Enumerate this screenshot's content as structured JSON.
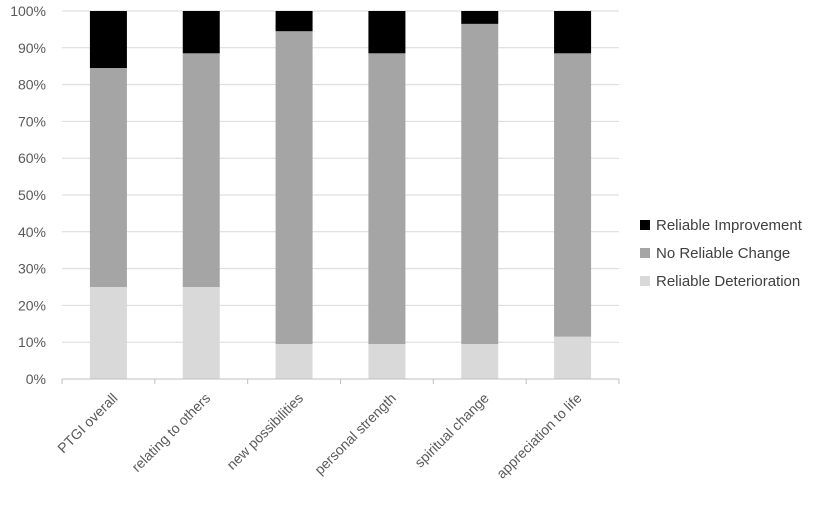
{
  "chart_data": {
    "type": "bar",
    "stacked": true,
    "percent_stacked": true,
    "title": "",
    "xlabel": "",
    "ylabel": "",
    "ylim": [
      0,
      100
    ],
    "y_ticks": [
      "0%",
      "10%",
      "20%",
      "30%",
      "40%",
      "50%",
      "60%",
      "70%",
      "80%",
      "90%",
      "100%"
    ],
    "grid": true,
    "legend_position": "right",
    "categories": [
      "PTGI overall",
      "relating to others",
      "new possibilities",
      "personal strength",
      "spiritual change",
      "appreciation to life"
    ],
    "series": [
      {
        "name": "Reliable Deterioration",
        "color": "#d9d9d9",
        "values": [
          25,
          25,
          9.5,
          9.5,
          9.5,
          11.5
        ]
      },
      {
        "name": "No Reliable Change",
        "color": "#a5a5a5",
        "values": [
          59.5,
          63.5,
          85,
          79,
          87,
          77
        ]
      },
      {
        "name": "Reliable Improvement",
        "color": "#000000",
        "values": [
          15.5,
          11.5,
          5.5,
          11.5,
          3.5,
          11.5
        ]
      }
    ],
    "legend_order": [
      "Reliable Improvement",
      "No Reliable Change",
      "Reliable Deterioration"
    ]
  }
}
